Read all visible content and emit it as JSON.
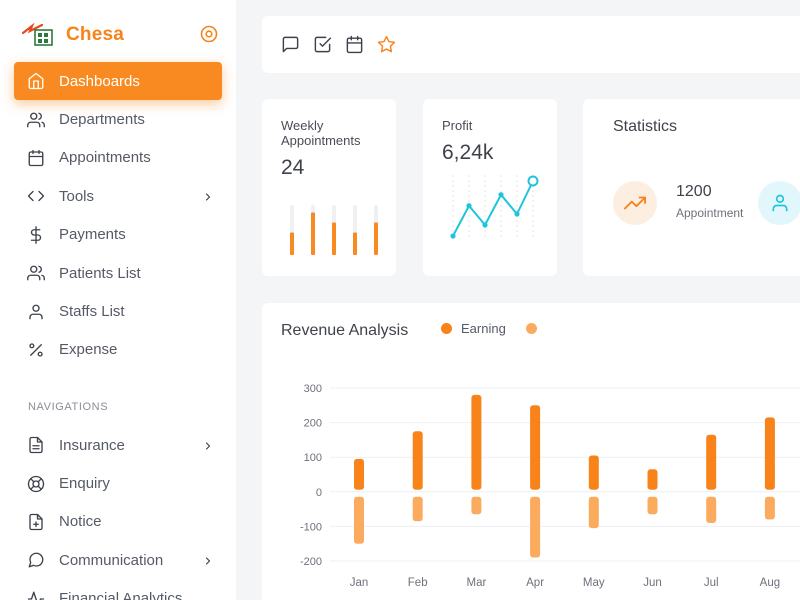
{
  "app": {
    "name": "Chesa"
  },
  "sidebar": {
    "items": [
      {
        "label": "Dashboards",
        "icon": "home-icon",
        "active": true
      },
      {
        "label": "Departments",
        "icon": "users-icon"
      },
      {
        "label": "Appointments",
        "icon": "calendar-icon"
      },
      {
        "label": "Tools",
        "icon": "code-icon",
        "has_submenu": true
      },
      {
        "label": "Payments",
        "icon": "dollar-icon"
      },
      {
        "label": "Patients List",
        "icon": "users-icon"
      },
      {
        "label": "Staffs List",
        "icon": "user-icon"
      },
      {
        "label": "Expense",
        "icon": "percent-icon"
      }
    ],
    "section_label": "NAVIGATIONS",
    "nav_items": [
      {
        "label": "Insurance",
        "icon": "file-text-icon",
        "has_submenu": true
      },
      {
        "label": "Enquiry",
        "icon": "life-buoy-icon"
      },
      {
        "label": "Notice",
        "icon": "file-plus-icon"
      },
      {
        "label": "Communication",
        "icon": "message-circle-icon",
        "has_submenu": true
      },
      {
        "label": "Financial Analytics",
        "icon": "activity-icon"
      }
    ]
  },
  "toolbar": {
    "icons": [
      "message-square-icon",
      "check-square-icon",
      "calendar-icon",
      "star-icon"
    ]
  },
  "cards": {
    "weekly": {
      "label": "Weekly Appointments",
      "value": "24",
      "bars": [
        0.45,
        0.85,
        0.65,
        0.45,
        0.65
      ]
    },
    "profit": {
      "label": "Profit",
      "value": "6,24k",
      "points": [
        0.0,
        0.55,
        0.2,
        0.75,
        0.4,
        1.0
      ]
    },
    "statistics": {
      "title": "Statistics",
      "value": "1200",
      "label": "Appointment",
      "icons": [
        "trending-up-icon",
        "user-icon"
      ]
    }
  },
  "colors": {
    "accent": "#f98a21",
    "earning": "#f7831a",
    "expense": "#fbab5e",
    "teal": "#1fc4dc"
  },
  "revenue": {
    "title": "Revenue Analysis",
    "legend": [
      {
        "name": "Earning",
        "color": "#f7831a"
      }
    ]
  },
  "chart_data": {
    "type": "bar",
    "title": "Revenue Analysis",
    "categories": [
      "Jan",
      "Feb",
      "Mar",
      "Apr",
      "May",
      "Jun",
      "Jul",
      "Aug"
    ],
    "series": [
      {
        "name": "Earning",
        "values": [
          95,
          175,
          280,
          250,
          105,
          65,
          165,
          215
        ]
      },
      {
        "values": [
          -150,
          -85,
          -65,
          -190,
          -105,
          -65,
          -90,
          -80
        ]
      }
    ],
    "yticks": [
      300,
      200,
      100,
      0,
      -100,
      -200
    ],
    "ylim": [
      -200,
      300
    ],
    "grid": true,
    "legend": "top-right"
  }
}
